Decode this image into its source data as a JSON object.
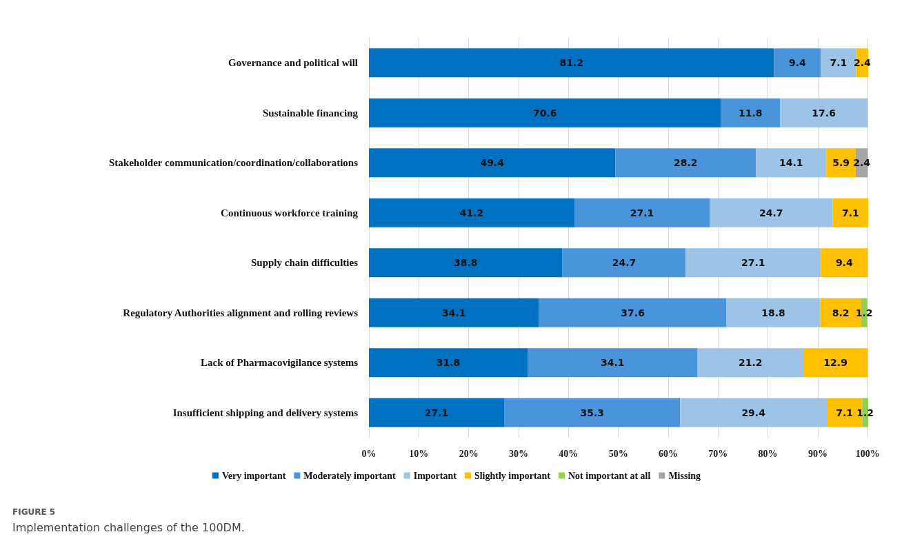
{
  "chart_data": {
    "type": "bar",
    "orientation": "horizontal",
    "stacked": true,
    "categories": [
      "Governance and political will",
      "Sustainable financing",
      "Stakeholder communication/coordination/collaborations",
      "Continuous workforce training",
      "Supply chain difficulties",
      "Regulatory Authorities alignment and rolling reviews",
      "Lack of Pharmacovigilance systems",
      "Insufficient shipping and delivery systems"
    ],
    "series": [
      {
        "name": "Very important",
        "color": "#0070c0",
        "values": [
          81.2,
          70.6,
          49.4,
          41.2,
          38.8,
          34.1,
          31.8,
          27.1
        ]
      },
      {
        "name": "Moderately important",
        "color": "#4a94dc",
        "values": [
          9.4,
          11.8,
          28.2,
          27.1,
          24.7,
          37.6,
          34.1,
          35.3
        ]
      },
      {
        "name": "Important",
        "color": "#9dc3e6",
        "values": [
          7.1,
          17.6,
          14.1,
          24.7,
          27.1,
          18.8,
          21.2,
          29.4
        ]
      },
      {
        "name": "Slightly important",
        "color": "#ffc000",
        "values": [
          2.4,
          null,
          5.9,
          7.1,
          9.4,
          8.2,
          12.9,
          7.1
        ]
      },
      {
        "name": "Not important at all",
        "color": "#92d050",
        "values": [
          null,
          null,
          null,
          null,
          null,
          1.2,
          null,
          1.2
        ]
      },
      {
        "name": "Missing",
        "color": "#a5a5a5",
        "values": [
          null,
          null,
          2.4,
          null,
          null,
          null,
          null,
          null
        ]
      }
    ],
    "xlim": [
      0,
      100.1
    ],
    "xticks": [
      {
        "value": 0,
        "label": "0%"
      },
      {
        "value": 10,
        "label": "10%"
      },
      {
        "value": 20,
        "label": "20%"
      },
      {
        "value": 30,
        "label": "30%"
      },
      {
        "value": 40,
        "label": "40%"
      },
      {
        "value": 50,
        "label": "50%"
      },
      {
        "value": 60,
        "label": "60%"
      },
      {
        "value": 70,
        "label": "70%"
      },
      {
        "value": 80,
        "label": "80%"
      },
      {
        "value": 90,
        "label": "90%"
      },
      {
        "value": 100,
        "label": "100%"
      }
    ],
    "grid": "x",
    "legend": "bottom",
    "data_labels": true,
    "annotations": [
      "FIGURE 5",
      "Implementation challenges of the 100DM."
    ]
  }
}
